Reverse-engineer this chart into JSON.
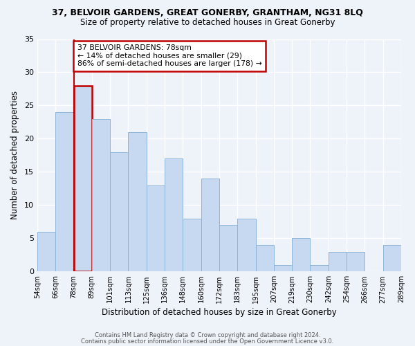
{
  "title_line1": "37, BELVOIR GARDENS, GREAT GONERBY, GRANTHAM, NG31 8LQ",
  "title_line2": "Size of property relative to detached houses in Great Gonerby",
  "xlabel": "Distribution of detached houses by size in Great Gonerby",
  "ylabel": "Number of detached properties",
  "footer_line1": "Contains HM Land Registry data © Crown copyright and database right 2024.",
  "footer_line2": "Contains public sector information licensed under the Open Government Licence v3.0.",
  "bin_labels": [
    "54sqm",
    "66sqm",
    "78sqm",
    "89sqm",
    "101sqm",
    "113sqm",
    "125sqm",
    "136sqm",
    "148sqm",
    "160sqm",
    "172sqm",
    "183sqm",
    "195sqm",
    "207sqm",
    "219sqm",
    "230sqm",
    "242sqm",
    "254sqm",
    "266sqm",
    "277sqm",
    "289sqm"
  ],
  "bar_values": [
    6,
    24,
    28,
    23,
    18,
    21,
    13,
    17,
    8,
    14,
    7,
    8,
    4,
    1,
    5,
    1,
    3,
    3,
    0,
    4
  ],
  "bar_color": "#c6d9f0",
  "bar_edge_color": "#8db4d8",
  "highlight_bar_index": 2,
  "highlight_edge_color": "#c00000",
  "ylim": [
    0,
    35
  ],
  "yticks": [
    0,
    5,
    10,
    15,
    20,
    25,
    30,
    35
  ],
  "annotation_title": "37 BELVOIR GARDENS: 78sqm",
  "annotation_line1": "← 14% of detached houses are smaller (29)",
  "annotation_line2": "86% of semi-detached houses are larger (178) →",
  "annotation_box_color": "#ffffff",
  "annotation_box_edge": "#c00000",
  "background_color": "#eef2f9"
}
